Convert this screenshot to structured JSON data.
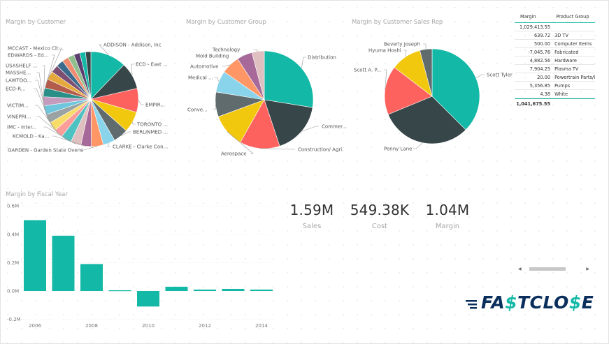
{
  "visuals": {
    "margin_by_customer": {
      "title": "Margin by Customer",
      "labels": [
        "ADDISON - Addison, Inc",
        "ECD - East ...",
        "EMPIR...",
        "TORONTO ...",
        "BERLINMED ...",
        "CLARKE - Clarke Con...",
        "GARDEN - Garden State Ovens",
        "KCMOLD - Ka...",
        "IMC - Inter...",
        "VINEPRI...",
        "VICTIM...",
        "ECD-R...",
        "LAWTOO...",
        "MASSHE...",
        "USASHELF ...",
        "EDWARDS - Ed...",
        "MCCAST - Mexico Cit..."
      ]
    },
    "margin_by_customer_group": {
      "title": "Margin by Customer Group",
      "labels": [
        "Distribution",
        "Commer...",
        "Construction/ Agri.",
        "Aerospace",
        "Conve...",
        "Medical ...",
        "Automotive",
        "Mold Building",
        "Technology"
      ]
    },
    "margin_by_sales_rep": {
      "title": "Margin by Customer Sales Rep",
      "labels": [
        "Scott Tyler",
        "Penny Lane",
        "Scott A. P...",
        "Hyuma Hoshi",
        "Beverly Joseph"
      ]
    },
    "margin_by_fiscal_year": {
      "title": "Margin by Fiscal Year"
    }
  },
  "table": {
    "headers": [
      "Margin",
      "Product Group"
    ],
    "rows": [
      {
        "margin": "1,029,413.55",
        "group": ""
      },
      {
        "margin": "639.72",
        "group": "3D TV"
      },
      {
        "margin": "500.00",
        "group": "Computer Items"
      },
      {
        "margin": "-7,045.76",
        "group": "Fabricated"
      },
      {
        "margin": "4,882.56",
        "group": "Hardware"
      },
      {
        "margin": "7,904.25",
        "group": "Plasma TV"
      },
      {
        "margin": "20.00",
        "group": "Powertrain Parts/C"
      },
      {
        "margin": "5,356.85",
        "group": "Pumps"
      },
      {
        "margin": "4.38",
        "group": "White"
      }
    ],
    "total": "1,041,675.55"
  },
  "kpis": [
    {
      "value": "1.59M",
      "label": "Sales"
    },
    {
      "value": "549.38K",
      "label": "Cost"
    },
    {
      "value": "1.04M",
      "label": "Margin"
    }
  ],
  "logo": {
    "text_a": "FA",
    "text_b": "$",
    "text_c": "T",
    "text_d": "CLO",
    "text_e": "$",
    "text_f": "E"
  },
  "colors": {
    "teal": "#14b8a6",
    "dark": "#374649",
    "red": "#fd625e",
    "yellow": "#f2c80f",
    "gray": "#5f6b6d",
    "sky": "#8ad4eb",
    "orange": "#fe9666",
    "purple": "#a66999",
    "pink": "#dfbfbf",
    "navy": "#0a2f5c"
  },
  "chart_data": [
    {
      "type": "pie",
      "title": "Margin by Customer",
      "labels": [
        "ADDISON - Addison, Inc",
        "ECD - East ...",
        "EMPIR...",
        "TORONTO ...",
        "BERLINMED ...",
        "CLARKE - Clarke Con...",
        "GARDEN - Garden State Ovens",
        "KCMOLD - Ka...",
        "IMC - Inter...",
        "VINEPRI...",
        "VICTIM...",
        "ECD-R...",
        "LAWTOO...",
        "MASSHE...",
        "USASHELF ...",
        "EDWARDS - Ed...",
        "MCCAST - Mexico Cit..."
      ],
      "values": [
        12,
        9,
        8,
        7,
        5,
        4,
        4,
        3.5,
        3.5,
        3.5,
        3,
        3,
        3,
        3,
        3,
        3,
        3
      ]
    },
    {
      "type": "pie",
      "title": "Margin by Customer Group",
      "labels": [
        "Distribution",
        "Commer...",
        "Construction/ Agri.",
        "Aerospace",
        "Conve...",
        "Medical ...",
        "Automotive",
        "Mold Building",
        "Technology"
      ],
      "values": [
        27,
        17,
        13,
        11,
        8,
        7,
        6,
        5,
        4
      ]
    },
    {
      "type": "pie",
      "title": "Margin by Customer Sales Rep",
      "labels": [
        "Scott Tyler",
        "Penny Lane",
        "Scott A. P...",
        "Hyuma Hoshi",
        "Beverly Joseph"
      ],
      "values": [
        36,
        30,
        16,
        10,
        4
      ]
    },
    {
      "type": "bar",
      "title": "Margin by Fiscal Year",
      "categories": [
        2006,
        2007,
        2008,
        2009,
        2010,
        2011,
        2012,
        2013,
        2014
      ],
      "values": [
        0.5,
        0.39,
        0.19,
        0.005,
        -0.11,
        0.03,
        0.01,
        0.015,
        0.01
      ],
      "x_tick_labels": [
        "2006",
        "2008",
        "2010",
        "2012",
        "2014"
      ],
      "y_tick_labels": [
        "0.6M",
        "0.4M",
        "0.2M",
        "0.0M",
        "-0.2M"
      ],
      "ylim": [
        -0.2,
        0.6
      ]
    }
  ]
}
